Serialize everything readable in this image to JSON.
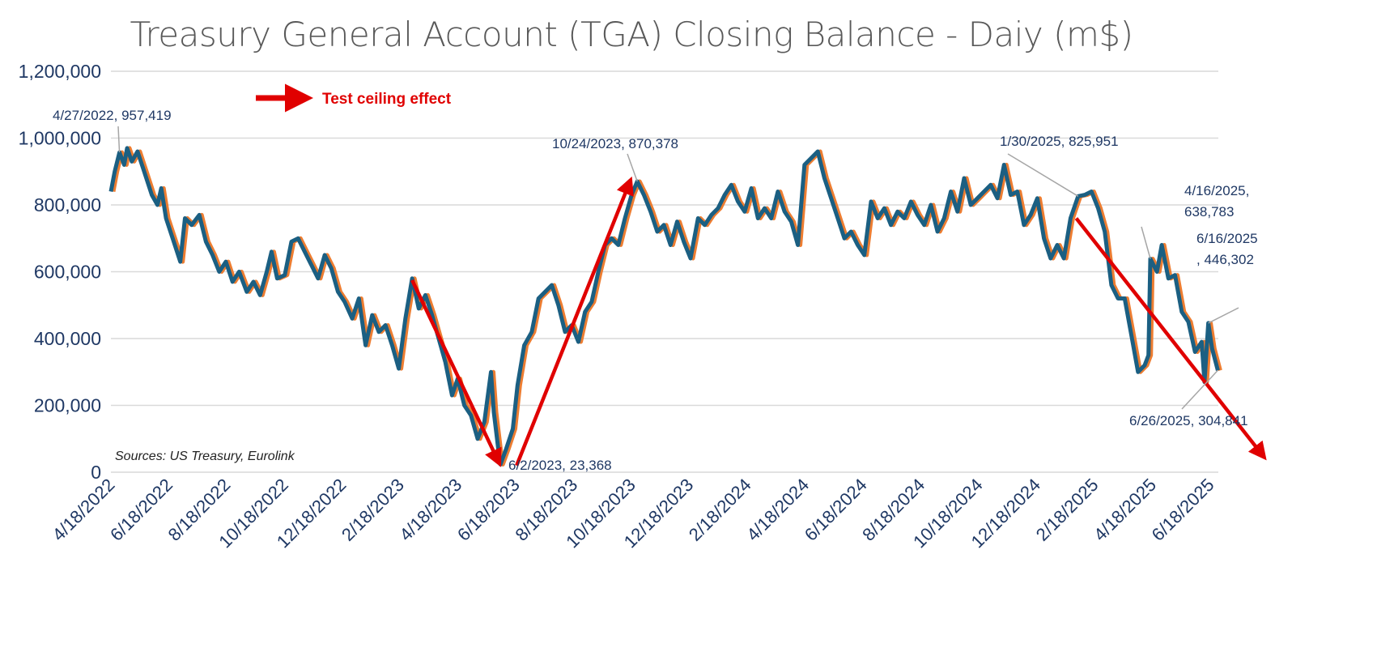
{
  "chart_data": {
    "type": "line",
    "title": "Treasury General Account (TGA) Closing Balance - Daiy  (m$)",
    "xlabel": "",
    "ylabel": "",
    "ylim": [
      0,
      1200000
    ],
    "yticks": [
      0,
      200000,
      400000,
      600000,
      800000,
      1000000,
      1200000
    ],
    "ytick_labels": [
      "0",
      "200,000",
      "400,000",
      "600,000",
      "800,000",
      "1,000,000",
      "1,200,000"
    ],
    "xlim": [
      "2022-04-18",
      "2025-06-26"
    ],
    "xtick_labels": [
      "4/18/2022",
      "6/18/2022",
      "8/18/2022",
      "10/18/2022",
      "12/18/2022",
      "2/18/2023",
      "4/18/2023",
      "6/18/2023",
      "8/18/2023",
      "10/18/2023",
      "12/18/2023",
      "2/18/2024",
      "4/18/2024",
      "6/18/2024",
      "8/18/2024",
      "10/18/2024",
      "12/18/2024",
      "2/18/2025",
      "4/18/2025",
      "6/18/2025"
    ],
    "grid": true,
    "series_colors": {
      "main": "#1b5f82",
      "shadow": "#ed7d31",
      "arrow": "#e00000"
    },
    "series": [
      {
        "name": "TGA closing balance",
        "x": [
          "2022-04-18",
          "2022-04-22",
          "2022-04-27",
          "2022-05-02",
          "2022-05-05",
          "2022-05-10",
          "2022-05-16",
          "2022-05-23",
          "2022-05-31",
          "2022-06-06",
          "2022-06-10",
          "2022-06-15",
          "2022-06-22",
          "2022-06-30",
          "2022-07-05",
          "2022-07-12",
          "2022-07-20",
          "2022-07-27",
          "2022-08-03",
          "2022-08-10",
          "2022-08-17",
          "2022-08-24",
          "2022-08-31",
          "2022-09-08",
          "2022-09-15",
          "2022-09-22",
          "2022-09-29",
          "2022-10-04",
          "2022-10-10",
          "2022-10-18",
          "2022-10-25",
          "2022-11-01",
          "2022-11-08",
          "2022-11-15",
          "2022-11-22",
          "2022-11-29",
          "2022-12-06",
          "2022-12-13",
          "2022-12-20",
          "2022-12-28",
          "2023-01-04",
          "2023-01-11",
          "2023-01-18",
          "2023-01-25",
          "2023-02-01",
          "2023-02-08",
          "2023-02-15",
          "2023-02-22",
          "2023-03-01",
          "2023-03-08",
          "2023-03-15",
          "2023-03-22",
          "2023-03-29",
          "2023-04-05",
          "2023-04-12",
          "2023-04-18",
          "2023-04-25",
          "2023-05-02",
          "2023-05-09",
          "2023-05-16",
          "2023-05-23",
          "2023-05-26",
          "2023-06-01",
          "2023-06-02",
          "2023-06-08",
          "2023-06-15",
          "2023-06-20",
          "2023-06-27",
          "2023-07-05",
          "2023-07-12",
          "2023-07-19",
          "2023-07-26",
          "2023-08-02",
          "2023-08-09",
          "2023-08-16",
          "2023-08-23",
          "2023-08-30",
          "2023-09-06",
          "2023-09-13",
          "2023-09-20",
          "2023-09-27",
          "2023-10-04",
          "2023-10-11",
          "2023-10-18",
          "2023-10-24",
          "2023-10-31",
          "2023-11-07",
          "2023-11-14",
          "2023-11-21",
          "2023-11-28",
          "2023-12-05",
          "2023-12-12",
          "2023-12-19",
          "2023-12-27",
          "2024-01-03",
          "2024-01-10",
          "2024-01-17",
          "2024-01-24",
          "2024-01-31",
          "2024-02-07",
          "2024-02-14",
          "2024-02-21",
          "2024-02-28",
          "2024-03-06",
          "2024-03-13",
          "2024-03-20",
          "2024-03-27",
          "2024-04-03",
          "2024-04-10",
          "2024-04-17",
          "2024-04-24",
          "2024-05-01",
          "2024-05-08",
          "2024-05-15",
          "2024-05-22",
          "2024-05-29",
          "2024-06-05",
          "2024-06-12",
          "2024-06-19",
          "2024-06-26",
          "2024-07-03",
          "2024-07-10",
          "2024-07-17",
          "2024-07-24",
          "2024-07-31",
          "2024-08-07",
          "2024-08-14",
          "2024-08-21",
          "2024-08-28",
          "2024-09-04",
          "2024-09-11",
          "2024-09-18",
          "2024-09-25",
          "2024-10-02",
          "2024-10-09",
          "2024-10-16",
          "2024-10-23",
          "2024-10-30",
          "2024-11-06",
          "2024-11-13",
          "2024-11-20",
          "2024-11-27",
          "2024-12-04",
          "2024-12-11",
          "2024-12-18",
          "2024-12-25",
          "2025-01-01",
          "2025-01-08",
          "2025-01-15",
          "2025-01-22",
          "2025-01-30",
          "2025-02-06",
          "2025-02-13",
          "2025-02-20",
          "2025-02-27",
          "2025-03-06",
          "2025-03-13",
          "2025-03-20",
          "2025-03-27",
          "2025-04-03",
          "2025-04-10",
          "2025-04-14",
          "2025-04-16",
          "2025-04-23",
          "2025-04-28",
          "2025-05-05",
          "2025-05-12",
          "2025-05-19",
          "2025-05-26",
          "2025-06-02",
          "2025-06-09",
          "2025-06-12",
          "2025-06-16",
          "2025-06-20",
          "2025-06-26"
        ],
        "values": [
          840000,
          900000,
          957419,
          920000,
          970000,
          930000,
          960000,
          900000,
          830000,
          800000,
          850000,
          760000,
          700000,
          630000,
          760000,
          740000,
          770000,
          690000,
          650000,
          600000,
          630000,
          570000,
          600000,
          540000,
          570000,
          530000,
          600000,
          660000,
          580000,
          590000,
          690000,
          700000,
          660000,
          620000,
          580000,
          650000,
          610000,
          540000,
          510000,
          460000,
          520000,
          380000,
          470000,
          420000,
          440000,
          380000,
          310000,
          460000,
          580000,
          490000,
          530000,
          470000,
          400000,
          330000,
          230000,
          280000,
          200000,
          170000,
          100000,
          150000,
          300000,
          180000,
          40000,
          23368,
          70000,
          130000,
          260000,
          380000,
          420000,
          520000,
          540000,
          560000,
          500000,
          420000,
          440000,
          390000,
          480000,
          510000,
          600000,
          680000,
          700000,
          680000,
          760000,
          830000,
          870378,
          830000,
          780000,
          720000,
          740000,
          680000,
          750000,
          690000,
          640000,
          760000,
          740000,
          770000,
          790000,
          830000,
          860000,
          810000,
          780000,
          850000,
          760000,
          790000,
          760000,
          840000,
          780000,
          750000,
          680000,
          920000,
          940000,
          960000,
          880000,
          820000,
          760000,
          700000,
          720000,
          680000,
          650000,
          810000,
          760000,
          790000,
          740000,
          780000,
          760000,
          810000,
          770000,
          740000,
          800000,
          720000,
          760000,
          840000,
          780000,
          880000,
          800000,
          820000,
          840000,
          860000,
          820000,
          920000,
          830000,
          840000,
          740000,
          770000,
          820000,
          700000,
          640000,
          680000,
          640000,
          760000,
          825951,
          830000,
          840000,
          790000,
          720000,
          560000,
          520000,
          520000,
          410000,
          300000,
          320000,
          350000,
          638783,
          600000,
          680000,
          580000,
          590000,
          480000,
          450000,
          360000,
          390000,
          270000,
          446302,
          370000,
          304841
        ]
      }
    ],
    "annotations": [
      {
        "x": "2022-04-27",
        "y": 957419,
        "label": "4/27/2022,  957,419"
      },
      {
        "x": "2023-06-02",
        "y": 23368,
        "label": "6/2/2023,  23,368"
      },
      {
        "x": "2023-10-24",
        "y": 870378,
        "label": "10/24/2023,  870,378"
      },
      {
        "x": "2025-01-30",
        "y": 825951,
        "label": "1/30/2025,  825,951"
      },
      {
        "x": "2025-04-16",
        "y": 638783,
        "label_lines": [
          "4/16/2025,",
          "638,783"
        ]
      },
      {
        "x": "2025-06-16",
        "y": 446302,
        "label_lines": [
          "6/16/2025",
          ",  446,302"
        ]
      },
      {
        "x": "2025-06-26",
        "y": 304841,
        "label": "6/26/2025,  304,841"
      }
    ],
    "trend_arrows": [
      {
        "from": [
          "2023-03-01",
          575000
        ],
        "to": [
          "2023-06-01",
          25000
        ]
      },
      {
        "from": [
          "2023-06-19",
          20000
        ],
        "to": [
          "2023-10-17",
          875000
        ]
      },
      {
        "from": [
          "2025-01-28",
          760000
        ],
        "to": [
          "2025-08-14",
          44000
        ]
      }
    ],
    "legend": {
      "label": "Test ceiling effect",
      "placement": "top-left"
    },
    "source": "Sources: US Treasury, Eurolink"
  }
}
